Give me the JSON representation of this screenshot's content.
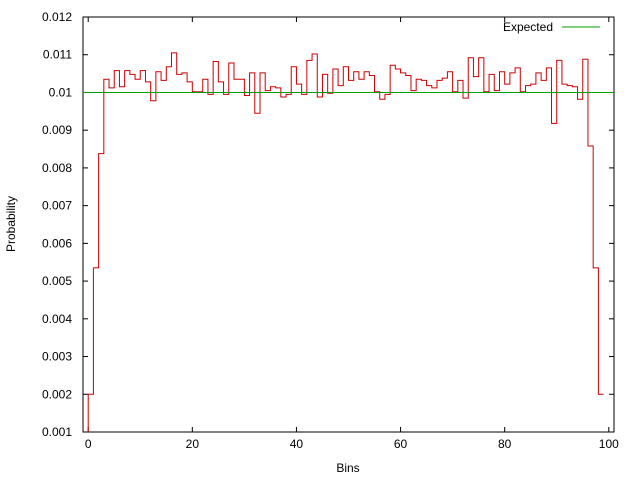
{
  "chart_data": {
    "type": "line",
    "xlabel": "Bins",
    "ylabel": "Probability",
    "xlim": [
      -1,
      101
    ],
    "ylim": [
      0.001,
      0.012
    ],
    "xticks": [
      0,
      20,
      40,
      60,
      80,
      100
    ],
    "yticks": [
      0.001,
      0.002,
      0.003,
      0.004,
      0.005,
      0.006,
      0.007,
      0.008,
      0.009,
      0.01,
      0.011,
      0.012
    ],
    "ytick_labels": [
      "0.001",
      "0.002",
      "0.003",
      "0.004",
      "0.005",
      "0.006",
      "0.007",
      "0.008",
      "0.009",
      "0.01",
      "0.011",
      "0.012"
    ],
    "legend_position": "top-right",
    "grid": false,
    "series": [
      {
        "name": "",
        "style": "steps",
        "color": "#cc0000",
        "x": [
          0,
          1,
          2,
          3,
          4,
          5,
          6,
          7,
          8,
          9,
          10,
          11,
          12,
          13,
          14,
          15,
          16,
          17,
          18,
          19,
          20,
          21,
          22,
          23,
          24,
          25,
          26,
          27,
          28,
          29,
          30,
          31,
          32,
          33,
          34,
          35,
          36,
          37,
          38,
          39,
          40,
          41,
          42,
          43,
          44,
          45,
          46,
          47,
          48,
          49,
          50,
          51,
          52,
          53,
          54,
          55,
          56,
          57,
          58,
          59,
          60,
          61,
          62,
          63,
          64,
          65,
          66,
          67,
          68,
          69,
          70,
          71,
          72,
          73,
          74,
          75,
          76,
          77,
          78,
          79,
          80,
          81,
          82,
          83,
          84,
          85,
          86,
          87,
          88,
          89,
          90,
          91,
          92,
          93,
          94,
          95,
          96,
          97,
          98
        ],
        "values": [
          0.002,
          0.00535,
          0.00838,
          0.01035,
          0.01012,
          0.01058,
          0.01015,
          0.01058,
          0.01048,
          0.01035,
          0.01058,
          0.01028,
          0.00978,
          0.01055,
          0.01032,
          0.01068,
          0.01105,
          0.01048,
          0.01052,
          0.01028,
          0.01002,
          0.01002,
          0.01035,
          0.00995,
          0.01082,
          0.01028,
          0.00995,
          0.01078,
          0.01035,
          0.01035,
          0.00992,
          0.01052,
          0.00945,
          0.01052,
          0.01005,
          0.01015,
          0.01012,
          0.00988,
          0.00995,
          0.01068,
          0.01022,
          0.00995,
          0.01085,
          0.01102,
          0.00988,
          0.01048,
          0.00998,
          0.01062,
          0.01018,
          0.01068,
          0.01032,
          0.01055,
          0.01035,
          0.01055,
          0.01045,
          0.01002,
          0.00982,
          0.00995,
          0.01072,
          0.01062,
          0.01052,
          0.01045,
          0.01005,
          0.01035,
          0.01032,
          0.01018,
          0.01012,
          0.01032,
          0.01038,
          0.01055,
          0.01002,
          0.01032,
          0.00985,
          0.01092,
          0.01042,
          0.01092,
          0.01002,
          0.01048,
          0.01005,
          0.01055,
          0.01022,
          0.01052,
          0.01065,
          0.01002,
          0.01018,
          0.01022,
          0.01052,
          0.01032,
          0.01065,
          0.00918,
          0.01085,
          0.01022,
          0.01018,
          0.01015,
          0.00982,
          0.01088,
          0.00858,
          0.00535,
          0.002
        ]
      },
      {
        "name": "Expected",
        "style": "line",
        "color": "#00a000",
        "x": [
          -1,
          101
        ],
        "values": [
          0.01,
          0.01
        ]
      }
    ]
  }
}
